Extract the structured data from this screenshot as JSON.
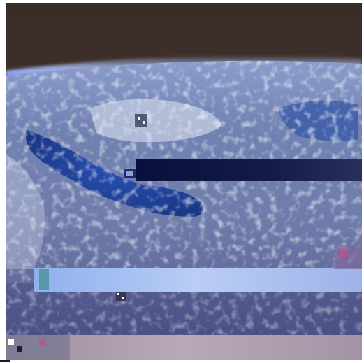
{
  "image": {
    "subject": "earth-from-orbit",
    "colors": {
      "space": "#3e2f28",
      "atmosphere": "#8fa8ff",
      "lake": "#1d3d9a",
      "land": "#7f8fb2",
      "cloud": "#d7ddeb",
      "glitch_band_dark": "#0b1136",
      "glitch_band_light": "#a9bff2",
      "glitch_band_bottom": "#b3a3b0"
    }
  }
}
